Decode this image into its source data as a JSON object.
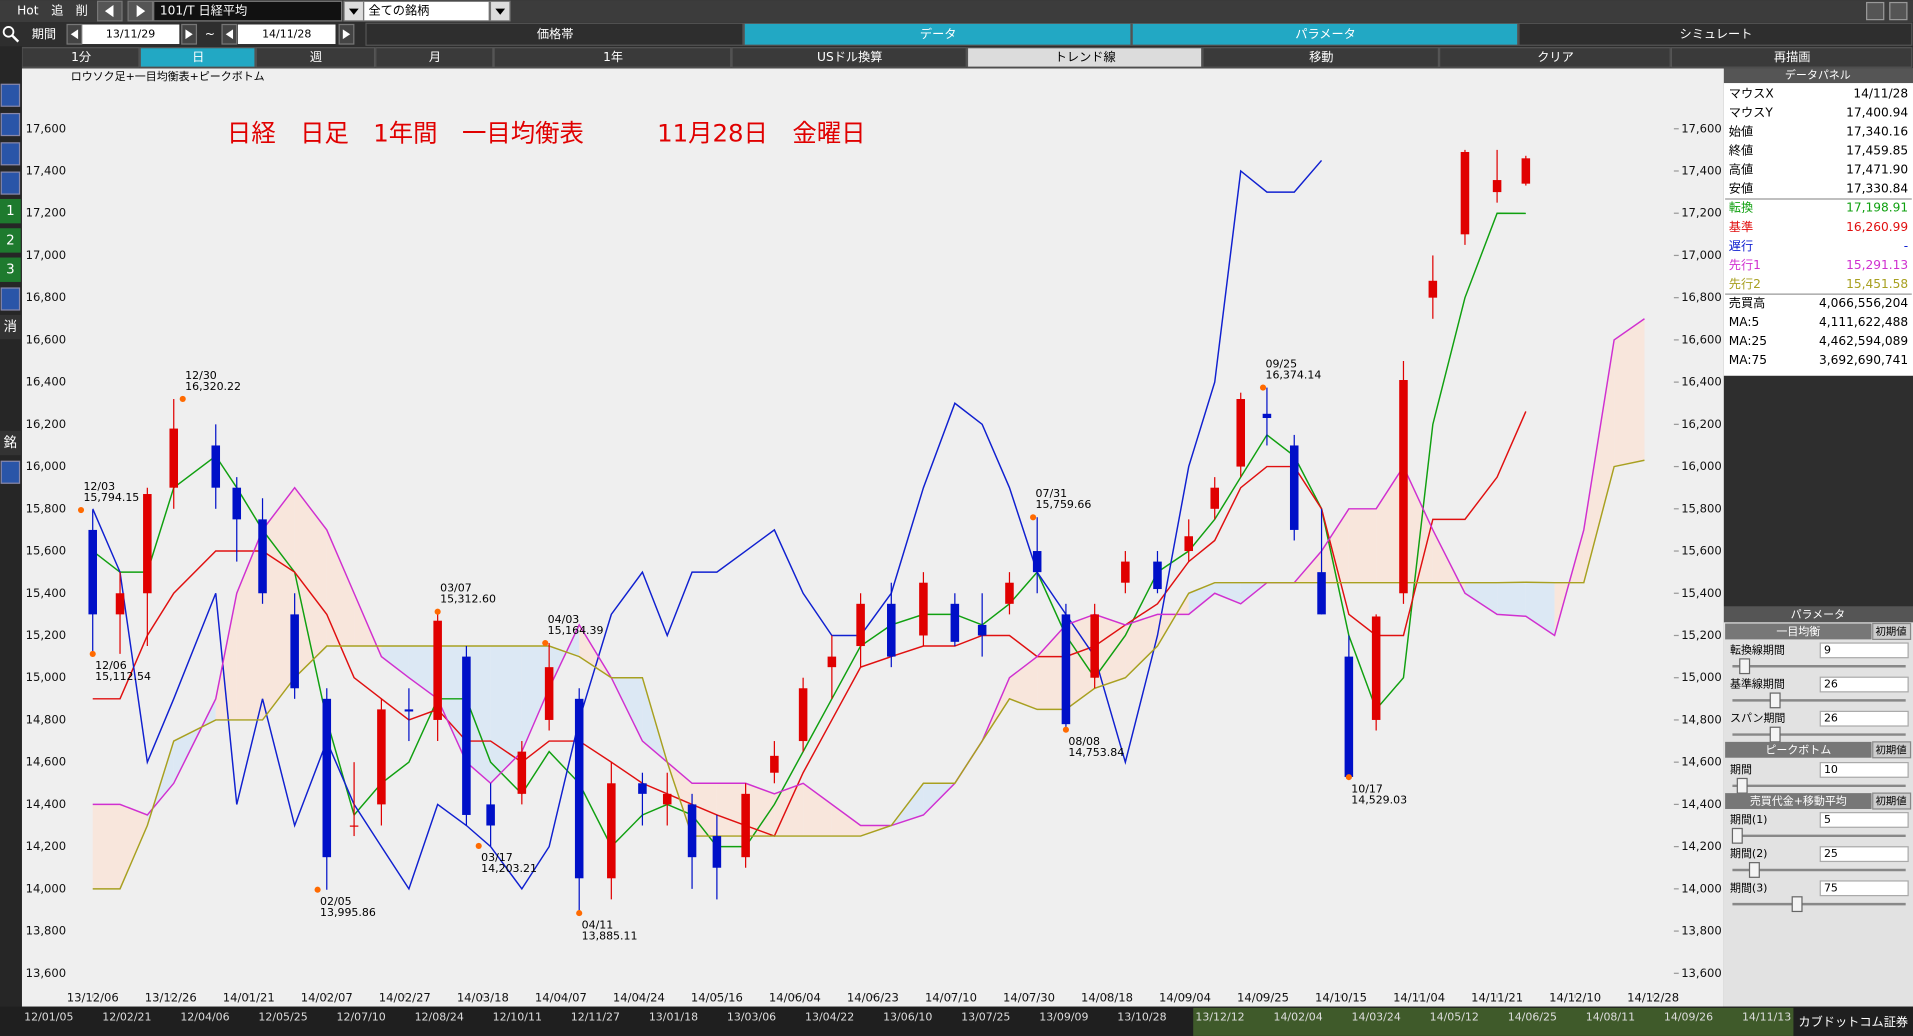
{
  "toolbar": {
    "buttons": [
      "Hot",
      "追",
      "削"
    ],
    "symbol": "101/T 日経平均",
    "universe": "全ての銘柄",
    "period_label": "期間",
    "from": "13/11/29",
    "tilde": "~",
    "to": "14/11/28",
    "tabs": [
      "価格帯",
      "データ",
      "パラメータ",
      "シミュレート"
    ],
    "timeframes": [
      "1分",
      "日",
      "週",
      "月",
      "1年",
      "USドル換算",
      "トレンド線",
      "移動",
      "クリア",
      "再描画"
    ]
  },
  "side_icons": [
    "1",
    "2",
    "3",
    "消",
    "銘"
  ],
  "chart_data": {
    "type": "candlestick",
    "subtitle": "ロウソク足+一目均衡表+ピークボトム",
    "title": "日経　日足　1年間　一目均衡表　　　11月28日　金曜日",
    "x": [
      "13/12/06",
      "13/12/13",
      "13/12/20",
      "13/12/27",
      "14/01/10",
      "14/01/17",
      "14/01/24",
      "14/01/31",
      "14/02/07",
      "14/02/14",
      "14/02/21",
      "14/02/28",
      "14/03/07",
      "14/03/14",
      "14/03/20",
      "14/03/28",
      "14/04/04",
      "14/04/11",
      "14/04/18",
      "14/04/25",
      "14/05/02",
      "14/05/09",
      "14/05/16",
      "14/05/23",
      "14/05/30",
      "14/06/06",
      "14/06/13",
      "14/06/20",
      "14/06/27",
      "14/07/04",
      "14/07/11",
      "14/07/18",
      "14/07/25",
      "14/08/01",
      "14/08/08",
      "14/08/15",
      "14/08/22",
      "14/08/29",
      "14/09/05",
      "14/09/12",
      "14/09/19",
      "14/09/26",
      "14/10/03",
      "14/10/10",
      "14/10/17",
      "14/10/24",
      "14/10/31",
      "14/11/07",
      "14/11/14",
      "14/11/21",
      "14/11/28",
      "14/12/05",
      "14/12/12",
      "14/12/19",
      "14/12/26"
    ],
    "open": [
      15700,
      15300,
      15400,
      15900,
      16100,
      15900,
      15750,
      15300,
      14900,
      14300,
      14400,
      14850,
      14800,
      15100,
      14400,
      14450,
      14800,
      14900,
      14050,
      14500,
      14400,
      14400,
      14250,
      14150,
      14550,
      14700,
      15050,
      15150,
      15350,
      15200,
      15350,
      15250,
      15350,
      15600,
      15300,
      15000,
      15450,
      15550,
      15600,
      15800,
      16000,
      16250,
      16100,
      15500,
      15100,
      14800,
      15400,
      16800,
      17100,
      17300,
      17340,
      null,
      null,
      null,
      null
    ],
    "high": [
      15794,
      15500,
      15900,
      16320,
      16200,
      15950,
      15850,
      15400,
      14950,
      14600,
      14900,
      14950,
      15313,
      15150,
      14500,
      14700,
      15164,
      14950,
      14600,
      14550,
      14550,
      14450,
      14350,
      14500,
      14700,
      15000,
      15200,
      15400,
      15450,
      15500,
      15400,
      15400,
      15500,
      15760,
      15350,
      15350,
      15600,
      15600,
      15750,
      15950,
      16350,
      16374,
      16150,
      15800,
      15200,
      15300,
      16500,
      17000,
      17500,
      17500,
      17472,
      null,
      null,
      null,
      null
    ],
    "low": [
      15100,
      15113,
      15150,
      15800,
      15800,
      15550,
      15350,
      14900,
      13996,
      14250,
      14300,
      14700,
      14700,
      14300,
      14203,
      14400,
      14750,
      13885,
      13950,
      14300,
      14300,
      14000,
      13950,
      14100,
      14500,
      14650,
      14900,
      15050,
      15050,
      15150,
      15150,
      15100,
      15300,
      15400,
      14754,
      14950,
      15400,
      15400,
      15550,
      15750,
      15950,
      16100,
      15650,
      15300,
      14529,
      14750,
      15350,
      16700,
      17050,
      17250,
      17331,
      null,
      null,
      null,
      null
    ],
    "close": [
      15300,
      15400,
      15870,
      16180,
      15900,
      15750,
      15400,
      14950,
      14150,
      14300,
      14850,
      14840,
      15270,
      14350,
      14300,
      14650,
      15050,
      14050,
      14500,
      14450,
      14450,
      14150,
      14100,
      14450,
      14630,
      14950,
      15100,
      15350,
      15100,
      15450,
      15170,
      15200,
      15450,
      15500,
      14780,
      15300,
      15550,
      15420,
      15670,
      15900,
      16320,
      16230,
      15700,
      15300,
      14530,
      15290,
      16410,
      16880,
      17490,
      17357,
      17460,
      null,
      null,
      null,
      null
    ],
    "up_color": "#e00000",
    "down_color": "#0010c8",
    "series": [
      {
        "name": "転換",
        "color": "#10a010",
        "values": [
          15600,
          15500,
          15500,
          15900,
          16050,
          15900,
          15700,
          15500,
          14800,
          14350,
          14500,
          14600,
          14900,
          14900,
          14600,
          14450,
          14650,
          14500,
          14200,
          14350,
          14400,
          14350,
          14200,
          14200,
          14400,
          14650,
          14900,
          15150,
          15250,
          15300,
          15300,
          15250,
          15350,
          15500,
          15200,
          15000,
          15200,
          15500,
          15600,
          15750,
          15950,
          16150,
          16050,
          15800,
          15200,
          14850,
          15000,
          16200,
          16800,
          17200,
          17199,
          null,
          null,
          null,
          null
        ]
      },
      {
        "name": "基準",
        "color": "#e01010",
        "values": [
          14900,
          14900,
          15200,
          15400,
          15600,
          15600,
          15600,
          15500,
          15300,
          15000,
          14900,
          14800,
          14850,
          14700,
          14700,
          14600,
          14700,
          14700,
          14600,
          14500,
          14450,
          14400,
          14350,
          14300,
          14250,
          14550,
          14800,
          15050,
          15100,
          15150,
          15150,
          15200,
          15200,
          15100,
          15100,
          15150,
          15250,
          15350,
          15550,
          15650,
          15900,
          16000,
          16000,
          15800,
          15300,
          15200,
          15200,
          15750,
          15750,
          15950,
          16261,
          null,
          null,
          null,
          null
        ]
      },
      {
        "name": "遅行",
        "color": "#1020d0",
        "values": [
          15800,
          15500,
          14600,
          14900,
          15400,
          14400,
          14900,
          14300,
          14700,
          14400,
          14200,
          14000,
          14400,
          14300,
          14200,
          14000,
          14200,
          14800,
          15300,
          15500,
          15200,
          15500,
          15500,
          15600,
          15700,
          15400,
          15200,
          15200,
          15400,
          15900,
          16300,
          16200,
          15900,
          15500,
          15300,
          15100,
          14600,
          15200,
          16000,
          16400,
          17400,
          17300,
          17300,
          17450,
          null,
          null,
          null,
          null,
          null,
          null,
          null,
          null,
          null,
          null,
          null
        ]
      },
      {
        "name": "先行1",
        "color": "#d030d0",
        "values": [
          14400,
          14400,
          14350,
          14500,
          14900,
          15400,
          15700,
          15900,
          15700,
          15400,
          15100,
          15000,
          14900,
          14600,
          14500,
          14650,
          14950,
          15250,
          15000,
          14700,
          14600,
          14500,
          14500,
          14500,
          14450,
          14500,
          14400,
          14300,
          14300,
          14350,
          14500,
          14700,
          15000,
          15100,
          15250,
          15300,
          15250,
          15300,
          15300,
          15400,
          15350,
          15450,
          15450,
          15600,
          15800,
          15800,
          16000,
          15700,
          15400,
          15300,
          15291,
          15200,
          15700,
          16600,
          16700
        ]
      },
      {
        "name": "先行2",
        "color": "#a8a020",
        "values": [
          14000,
          14000,
          14300,
          14700,
          14800,
          14800,
          14800,
          15000,
          15150,
          15150,
          15150,
          15150,
          15150,
          15150,
          15150,
          15150,
          15150,
          15100,
          15000,
          15000,
          14600,
          14250,
          14250,
          14250,
          14250,
          14250,
          14250,
          14250,
          14300,
          14500,
          14500,
          14700,
          14900,
          14850,
          14850,
          14950,
          15000,
          15150,
          15400,
          15450,
          15450,
          15450,
          15450,
          15450,
          15450,
          15450,
          15450,
          15450,
          15450,
          15450,
          15452,
          15450,
          15450,
          16000,
          16030
        ]
      }
    ],
    "cloud_colors": {
      "up": "#f8e6dc",
      "down": "#dce8f4"
    },
    "ylim": [
      13500,
      17880
    ],
    "yticks": [
      {
        "value": 13600,
        "label": "13,600"
      },
      {
        "value": 13800,
        "label": "13,800"
      },
      {
        "value": 14000,
        "label": "14,000"
      },
      {
        "value": 14200,
        "label": "14,200"
      },
      {
        "value": 14400,
        "label": "14,400"
      },
      {
        "value": 14600,
        "label": "14,600"
      },
      {
        "value": 14800,
        "label": "14,800"
      },
      {
        "value": 15000,
        "label": "15,000"
      },
      {
        "value": 15200,
        "label": "15,200"
      },
      {
        "value": 15400,
        "label": "15,400"
      },
      {
        "value": 15600,
        "label": "15,600"
      },
      {
        "value": 15800,
        "label": "15,800"
      },
      {
        "value": 16000,
        "label": "16,000"
      },
      {
        "value": 16200,
        "label": "16,200"
      },
      {
        "value": 16400,
        "label": "16,400"
      },
      {
        "value": 16600,
        "label": "16,600"
      },
      {
        "value": 16800,
        "label": "16,800"
      },
      {
        "value": 17000,
        "label": "17,000"
      },
      {
        "value": 17200,
        "label": "17,200"
      },
      {
        "value": 17400,
        "label": "17,400"
      },
      {
        "value": 17600,
        "label": "17,600"
      }
    ],
    "xticks": [
      "13/12/06",
      "13/12/26",
      "14/01/21",
      "14/02/07",
      "14/02/27",
      "14/03/18",
      "14/04/07",
      "14/04/24",
      "14/05/16",
      "14/06/04",
      "14/06/23",
      "14/07/10",
      "14/07/30",
      "14/08/18",
      "14/09/04",
      "14/09/25",
      "14/10/15",
      "14/11/04",
      "14/11/21",
      "14/12/10",
      "14/12/28"
    ],
    "peaks": [
      {
        "x": "13/12/03",
        "value": 15794.15,
        "date_label": "12/03",
        "value_label": "15,794.15"
      },
      {
        "x": "13/12/06",
        "value": 15112.54,
        "date_label": "12/06",
        "value_label": "15,112.54"
      },
      {
        "x": "13/12/30",
        "value": 16320.22,
        "date_label": "12/30",
        "value_label": "16,320.22"
      },
      {
        "x": "14/02/05",
        "value": 13995.86,
        "date_label": "02/05",
        "value_label": "13,995.86"
      },
      {
        "x": "14/03/07",
        "value": 15312.6,
        "date_label": "03/07",
        "value_label": "15,312.60"
      },
      {
        "x": "14/03/17",
        "value": 14203.21,
        "date_label": "03/17",
        "value_label": "14,203.21"
      },
      {
        "x": "14/04/03",
        "value": 15164.39,
        "date_label": "04/03",
        "value_label": "15,164.39"
      },
      {
        "x": "14/04/11",
        "value": 13885.11,
        "date_label": "04/11",
        "value_label": "13,885.11"
      },
      {
        "x": "14/07/31",
        "value": 15759.66,
        "date_label": "07/31",
        "value_label": "15,759.66"
      },
      {
        "x": "14/08/08",
        "value": 14753.84,
        "date_label": "08/08",
        "value_label": "14,753.84"
      },
      {
        "x": "14/09/25",
        "value": 16374.14,
        "date_label": "09/25",
        "value_label": "16,374.14"
      },
      {
        "x": "14/10/17",
        "value": 14529.03,
        "date_label": "10/17",
        "value_label": "14,529.03"
      }
    ],
    "peak_color": "#ff6a00"
  },
  "data_panel": {
    "title": "データパネル",
    "rows": [
      [
        "マウスX",
        "14/11/28"
      ],
      [
        "マウスY",
        "17,400.94"
      ],
      [
        "始値",
        "17,340.16"
      ],
      [
        "終値",
        "17,459.85"
      ],
      [
        "高値",
        "17,471.90"
      ],
      [
        "安値",
        "17,330.84"
      ],
      [
        "転換",
        "17,198.91"
      ],
      [
        "基準",
        "16,260.99"
      ],
      [
        "遅行",
        "-"
      ],
      [
        "先行1",
        "15,291.13"
      ],
      [
        "先行2",
        "15,451.58"
      ],
      [
        "売買高",
        "4,066,556,204"
      ],
      [
        "MA:5",
        "4,111,622,488"
      ],
      [
        "MA:25",
        "4,462,594,089"
      ],
      [
        "MA:75",
        "3,692,690,741"
      ]
    ]
  },
  "parameter_panel": {
    "title": "パラメータ",
    "reset": "初期値",
    "sections": [
      {
        "title": "一目均衡",
        "rows": [
          [
            "転換線期間",
            "9"
          ],
          [
            "基準線期間",
            "26"
          ],
          [
            "スパン期間",
            "26"
          ]
        ]
      },
      {
        "title": "ピークボトム",
        "rows": [
          [
            "期間",
            "10"
          ]
        ]
      },
      {
        "title": "売買代金+移動平均",
        "rows": [
          [
            "期間(1)",
            "5"
          ],
          [
            "期間(2)",
            "25"
          ],
          [
            "期間(3)",
            "75"
          ]
        ]
      }
    ]
  },
  "navigator": {
    "labels": [
      "12/01/05",
      "12/02/21",
      "12/04/06",
      "12/05/25",
      "12/07/10",
      "12/08/24",
      "12/10/11",
      "12/11/27",
      "13/01/18",
      "13/03/06",
      "13/04/22",
      "13/06/10",
      "13/07/25",
      "13/09/09",
      "13/10/28",
      "13/12/12",
      "14/02/04",
      "14/03/24",
      "14/05/12",
      "14/06/25",
      "14/08/11",
      "14/09/26",
      "14/11/13"
    ],
    "brand": "カブドットコム証券"
  }
}
